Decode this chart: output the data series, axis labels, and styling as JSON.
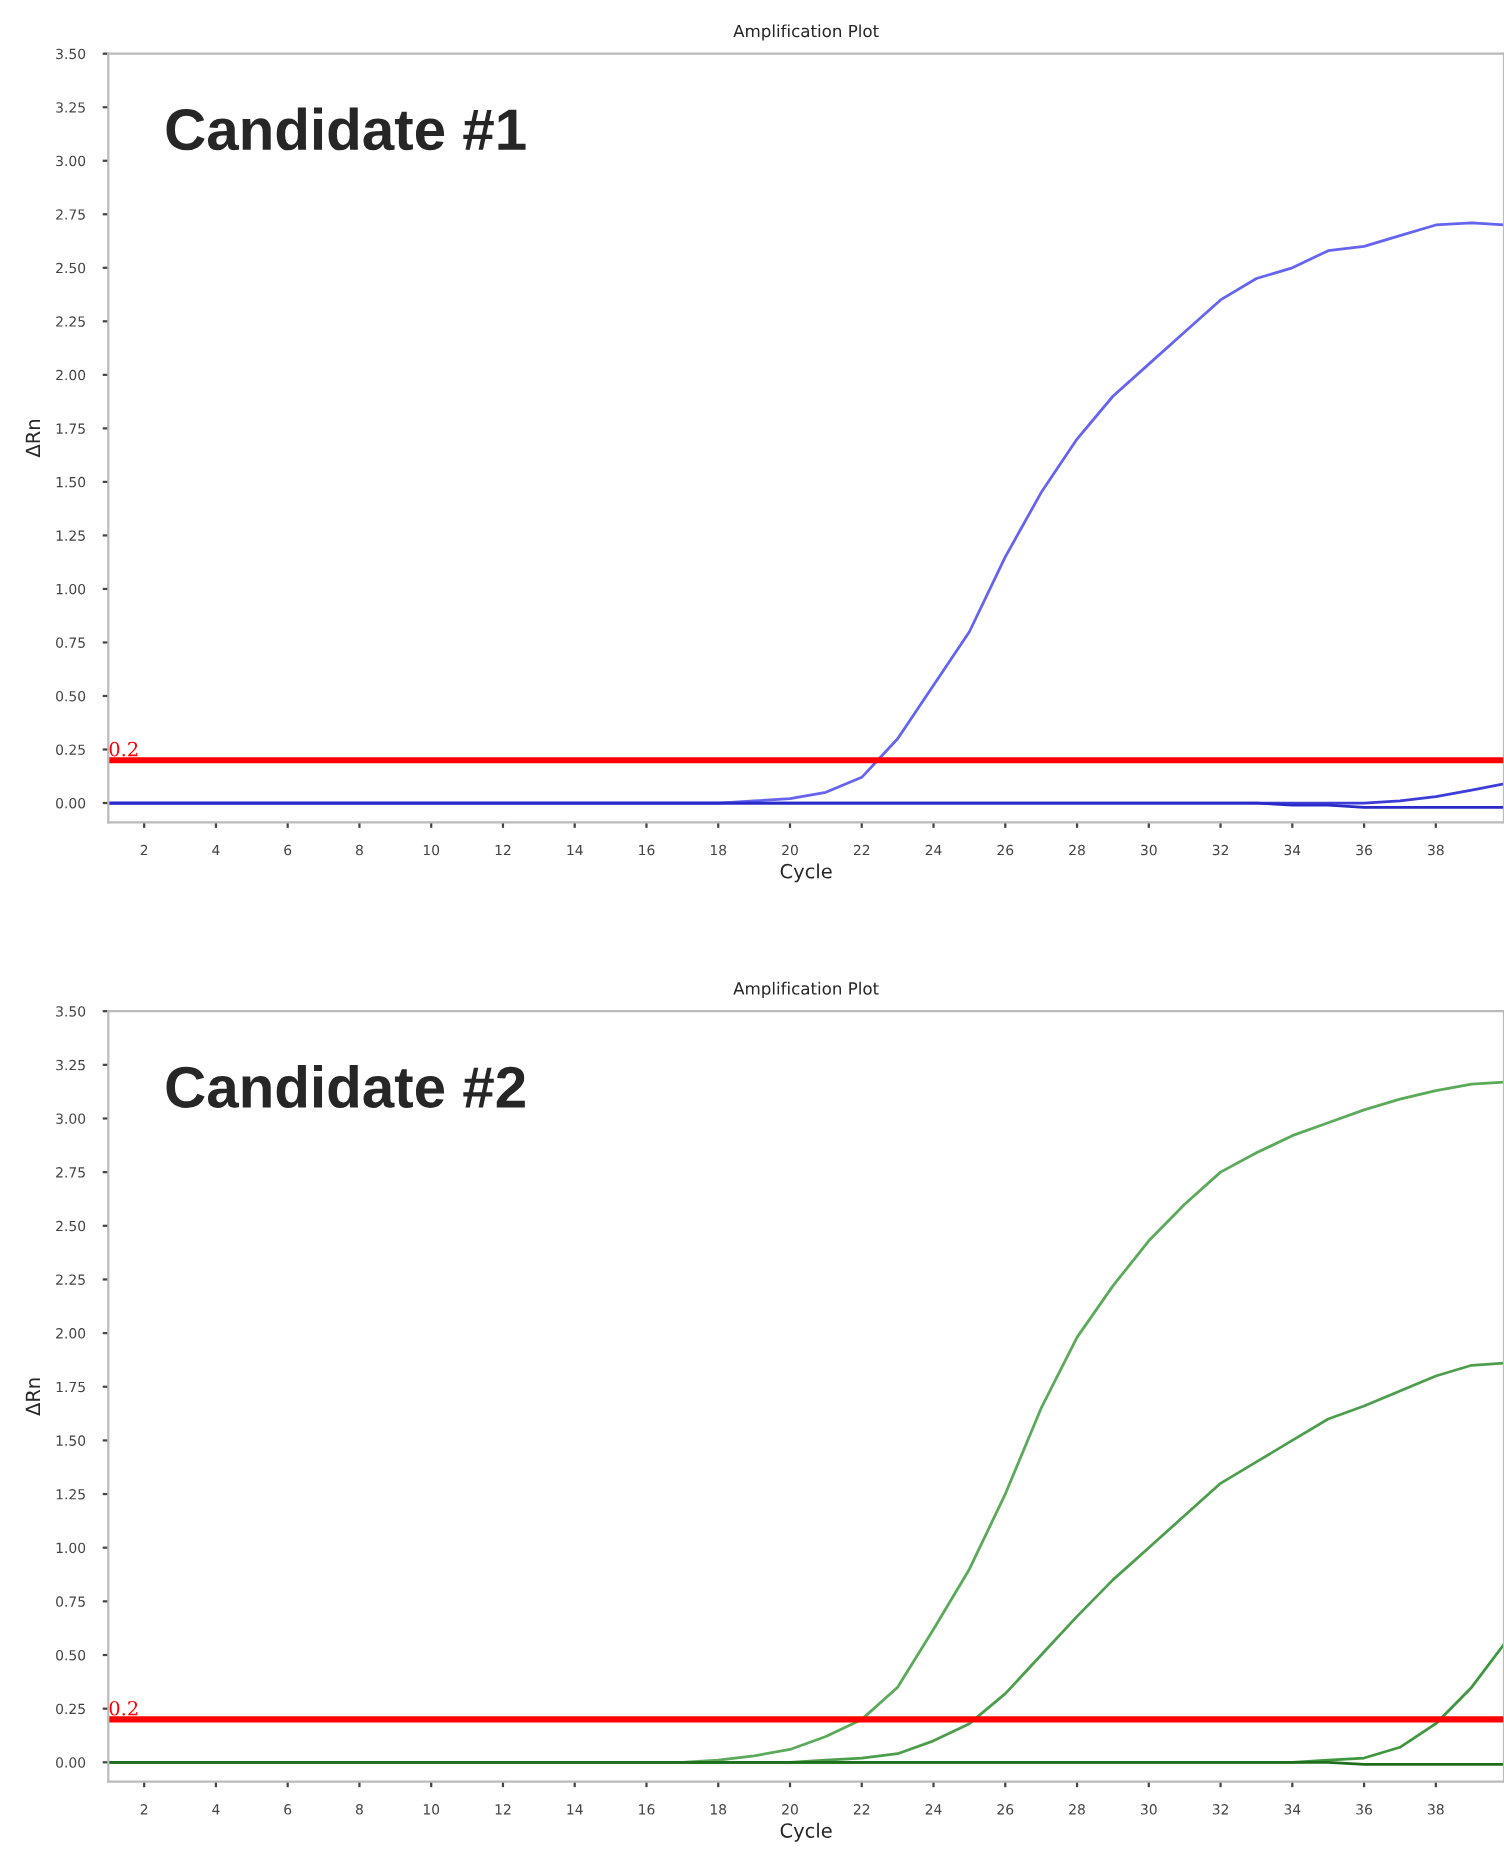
{
  "chart_data": [
    {
      "type": "line",
      "title": "Amplification Plot",
      "xlabel": "Cycle",
      "ylabel": "ΔRn",
      "annotations": [
        "Candidate #1"
      ],
      "x": [
        1,
        2,
        3,
        4,
        5,
        6,
        7,
        8,
        9,
        10,
        11,
        12,
        13,
        14,
        15,
        16,
        17,
        18,
        19,
        20,
        21,
        22,
        23,
        24,
        25,
        26,
        27,
        28,
        29,
        30,
        31,
        32,
        33,
        34,
        35,
        36,
        37,
        38,
        39,
        39.9
      ],
      "series": [
        {
          "color": "#6464f0",
          "values": [
            0,
            0,
            0,
            0,
            0,
            0,
            0,
            0,
            0,
            0,
            0,
            0,
            0,
            0,
            0,
            0,
            0,
            0,
            0.01,
            0.02,
            0.05,
            0.12,
            0.3,
            0.55,
            0.8,
            1.15,
            1.45,
            1.7,
            1.9,
            2.05,
            2.2,
            2.35,
            2.45,
            2.5,
            2.58,
            2.6,
            2.65,
            2.7,
            2.71,
            2.7
          ]
        },
        {
          "color": "#3c3cd8",
          "values": [
            0,
            0,
            0,
            0,
            0,
            0,
            0,
            0,
            0,
            0,
            0,
            0,
            0,
            0,
            0,
            0,
            0,
            0,
            0,
            0,
            0,
            0,
            0,
            0,
            0,
            0,
            0,
            0,
            0,
            0,
            0,
            0,
            0,
            0,
            0,
            0,
            0.01,
            0.03,
            0.06,
            0.09
          ]
        },
        {
          "color": "#2a2ac8",
          "values": [
            0,
            0,
            0,
            0,
            0,
            0,
            0,
            0,
            0,
            0,
            0,
            0,
            0,
            0,
            0,
            0,
            0,
            0,
            0,
            0,
            0,
            0,
            0,
            0,
            0,
            0,
            0,
            0,
            0,
            0,
            0,
            0,
            0,
            -0.01,
            -0.01,
            -0.02,
            -0.02,
            -0.02,
            -0.02,
            -0.02
          ]
        }
      ],
      "xlim": [
        1,
        39.9
      ],
      "xticks": [
        2,
        4,
        6,
        8,
        10,
        12,
        14,
        16,
        18,
        20,
        22,
        24,
        26,
        28,
        30,
        32,
        34,
        36,
        38
      ],
      "ylim": [
        -0.09,
        3.5
      ],
      "yticks": [
        {
          "value": 0,
          "label": "0.00"
        },
        {
          "value": 0.25,
          "label": "0.25"
        },
        {
          "value": 0.5,
          "label": "0.50"
        },
        {
          "value": 0.75,
          "label": "0.75"
        },
        {
          "value": 1,
          "label": "1.00"
        },
        {
          "value": 1.25,
          "label": "1.25"
        },
        {
          "value": 1.5,
          "label": "1.50"
        },
        {
          "value": 1.75,
          "label": "1.75"
        },
        {
          "value": 2,
          "label": "2.00"
        },
        {
          "value": 2.25,
          "label": "2.25"
        },
        {
          "value": 2.5,
          "label": "2.50"
        },
        {
          "value": 2.75,
          "label": "2.75"
        },
        {
          "value": 3,
          "label": "3.00"
        },
        {
          "value": 3.25,
          "label": "3.25"
        },
        {
          "value": 3.5,
          "label": "3.50"
        }
      ],
      "ref_lines": [
        {
          "axis": "y",
          "value": 0.2,
          "label": "0.2",
          "color": "#ff0000"
        }
      ],
      "legend": false,
      "grid": false
    },
    {
      "type": "line",
      "title": "Amplification Plot",
      "xlabel": "Cycle",
      "ylabel": "ΔRn",
      "annotations": [
        "Candidate #2"
      ],
      "x": [
        1,
        2,
        3,
        4,
        5,
        6,
        7,
        8,
        9,
        10,
        11,
        12,
        13,
        14,
        15,
        16,
        17,
        18,
        19,
        20,
        21,
        22,
        23,
        24,
        25,
        26,
        27,
        28,
        29,
        30,
        31,
        32,
        33,
        34,
        35,
        36,
        37,
        38,
        39,
        39.9
      ],
      "series": [
        {
          "color": "#5aaa5a",
          "values": [
            0,
            0,
            0,
            0,
            0,
            0,
            0,
            0,
            0,
            0,
            0,
            0,
            0,
            0,
            0,
            0,
            0,
            0.01,
            0.03,
            0.06,
            0.12,
            0.2,
            0.35,
            0.62,
            0.9,
            1.25,
            1.65,
            1.98,
            2.22,
            2.43,
            2.6,
            2.75,
            2.84,
            2.92,
            2.98,
            3.04,
            3.09,
            3.13,
            3.16,
            3.17
          ]
        },
        {
          "color": "#4c9e4c",
          "values": [
            0,
            0,
            0,
            0,
            0,
            0,
            0,
            0,
            0,
            0,
            0,
            0,
            0,
            0,
            0,
            0,
            0,
            0,
            0,
            0,
            0.01,
            0.02,
            0.04,
            0.1,
            0.18,
            0.32,
            0.5,
            0.68,
            0.85,
            1.0,
            1.15,
            1.3,
            1.4,
            1.5,
            1.6,
            1.66,
            1.73,
            1.8,
            1.85,
            1.86
          ]
        },
        {
          "color": "#3e963e",
          "values": [
            0,
            0,
            0,
            0,
            0,
            0,
            0,
            0,
            0,
            0,
            0,
            0,
            0,
            0,
            0,
            0,
            0,
            0,
            0,
            0,
            0,
            0,
            0,
            0,
            0,
            0,
            0,
            0,
            0,
            0,
            0,
            0,
            0,
            0,
            0.01,
            0.02,
            0.07,
            0.18,
            0.35,
            0.55
          ]
        },
        {
          "color": "#1e6e1e",
          "values": [
            0,
            0,
            0,
            0,
            0,
            0,
            0,
            0,
            0,
            0,
            0,
            0,
            0,
            0,
            0,
            0,
            0,
            0,
            0,
            0,
            0,
            0,
            0,
            0,
            0,
            0,
            0,
            0,
            0,
            0,
            0,
            0,
            0,
            0,
            0,
            -0.01,
            -0.01,
            -0.01,
            -0.01,
            -0.01
          ]
        }
      ],
      "xlim": [
        1,
        39.9
      ],
      "xticks": [
        2,
        4,
        6,
        8,
        10,
        12,
        14,
        16,
        18,
        20,
        22,
        24,
        26,
        28,
        30,
        32,
        34,
        36,
        38
      ],
      "ylim": [
        -0.09,
        3.5
      ],
      "yticks": [
        {
          "value": 0,
          "label": "0.00"
        },
        {
          "value": 0.25,
          "label": "0.25"
        },
        {
          "value": 0.5,
          "label": "0.50"
        },
        {
          "value": 0.75,
          "label": "0.75"
        },
        {
          "value": 1,
          "label": "1.00"
        },
        {
          "value": 1.25,
          "label": "1.25"
        },
        {
          "value": 1.5,
          "label": "1.50"
        },
        {
          "value": 1.75,
          "label": "1.75"
        },
        {
          "value": 2,
          "label": "2.00"
        },
        {
          "value": 2.25,
          "label": "2.25"
        },
        {
          "value": 2.5,
          "label": "2.50"
        },
        {
          "value": 2.75,
          "label": "2.75"
        },
        {
          "value": 3,
          "label": "3.00"
        },
        {
          "value": 3.25,
          "label": "3.25"
        },
        {
          "value": 3.5,
          "label": "3.50"
        }
      ],
      "ref_lines": [
        {
          "axis": "y",
          "value": 0.2,
          "label": "0.2",
          "color": "#ff0000"
        }
      ],
      "legend": false,
      "grid": false
    }
  ]
}
